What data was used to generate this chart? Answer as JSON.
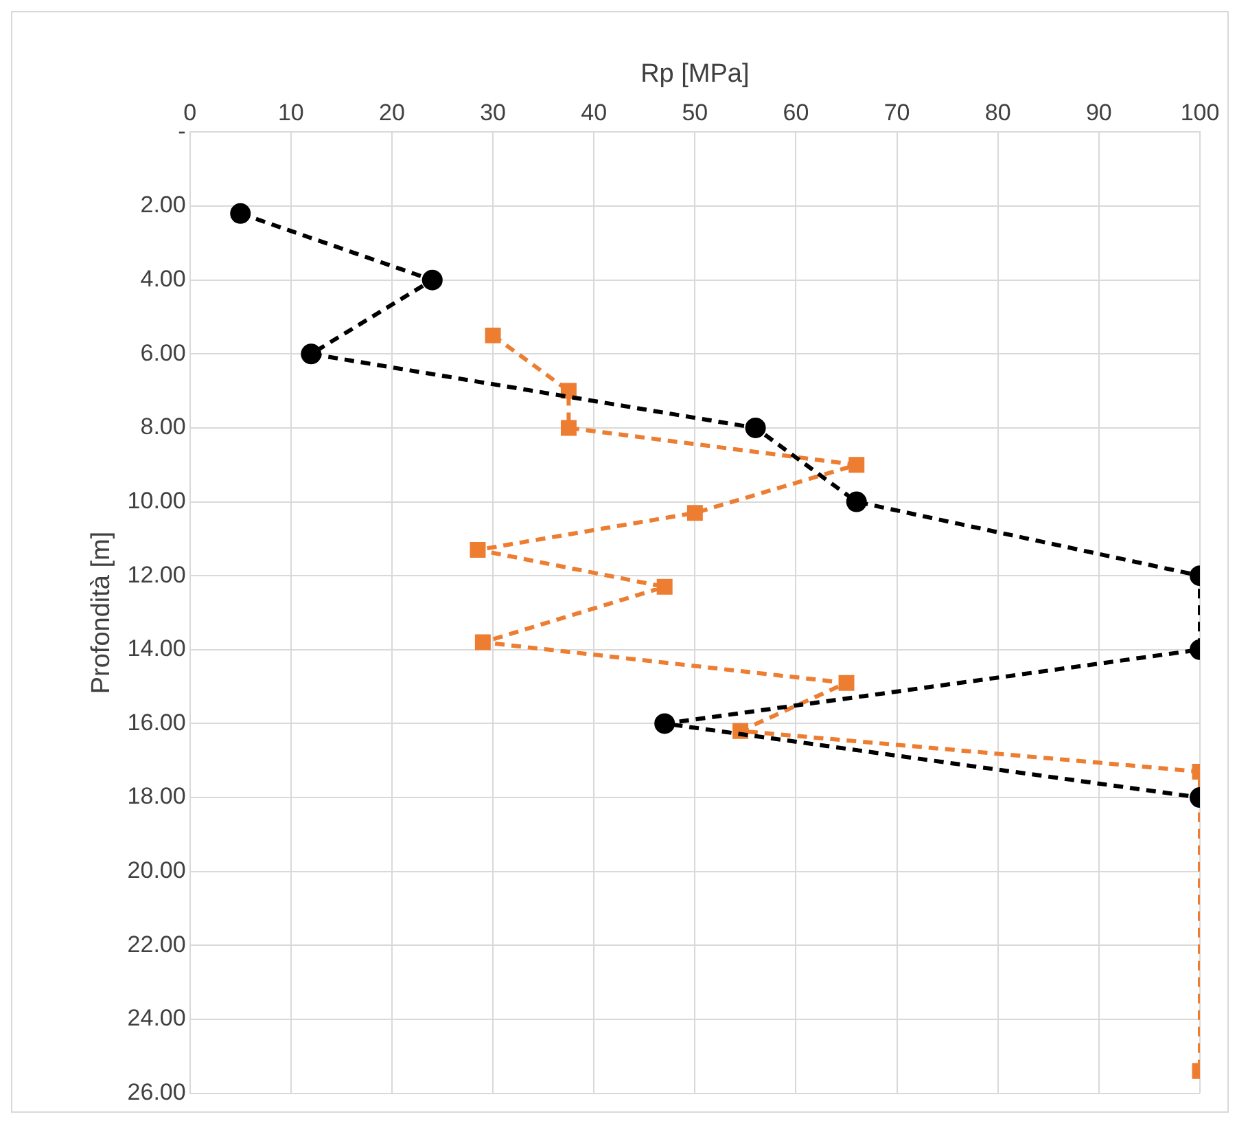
{
  "chart_data": {
    "type": "line",
    "xlabel": "Rp [MPa]",
    "ylabel": "Profondità [m]",
    "xlim": [
      0,
      100
    ],
    "xticks": [
      0,
      10,
      20,
      30,
      40,
      50,
      60,
      70,
      80,
      90,
      100
    ],
    "ylim": [
      26,
      0
    ],
    "yticks": [
      {
        "value": 0,
        "label": "-"
      },
      {
        "value": 2,
        "label": "2.00"
      },
      {
        "value": 4,
        "label": "4.00"
      },
      {
        "value": 6,
        "label": "6.00"
      },
      {
        "value": 8,
        "label": "8.00"
      },
      {
        "value": 10,
        "label": "10.00"
      },
      {
        "value": 12,
        "label": "12.00"
      },
      {
        "value": 14,
        "label": "14.00"
      },
      {
        "value": 16,
        "label": "16.00"
      },
      {
        "value": 18,
        "label": "18.00"
      },
      {
        "value": 20,
        "label": "20.00"
      },
      {
        "value": 22,
        "label": "22.00"
      },
      {
        "value": 24,
        "label": "24.00"
      },
      {
        "value": 26,
        "label": "26.00"
      }
    ],
    "grid": true,
    "legend": false,
    "line_style": "dashed",
    "series": [
      {
        "color": "#000000",
        "marker": "circle",
        "x": [
          5,
          24,
          12,
          56,
          66,
          100,
          100,
          47,
          100
        ],
        "values": [
          2.2,
          4,
          6,
          8,
          10,
          12,
          14,
          16,
          18
        ]
      },
      {
        "color": "#ed7d31",
        "marker": "square",
        "x": [
          30,
          37.5,
          37.5,
          66,
          50,
          28.5,
          47,
          29,
          65,
          54.5,
          100,
          100
        ],
        "values": [
          5.5,
          7,
          8,
          9,
          10.3,
          11.3,
          12.3,
          13.8,
          14.9,
          16.2,
          17.3,
          25.4
        ]
      }
    ]
  }
}
